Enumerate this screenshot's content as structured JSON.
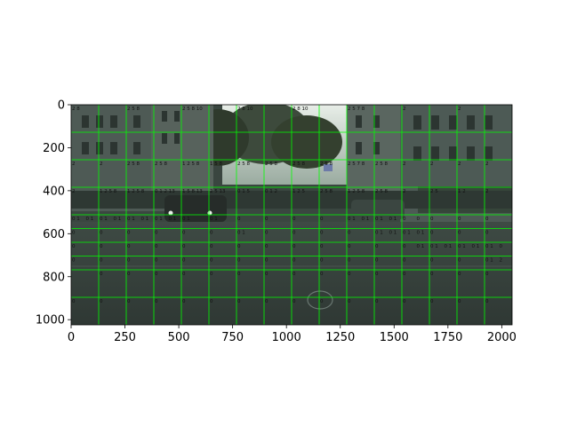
{
  "figure": {
    "image_description_kind": "street-scene",
    "accent_color": "#00ff00",
    "x_ticks": [
      "0",
      "250",
      "500",
      "750",
      "1000",
      "1250",
      "1500",
      "1750",
      "2000"
    ],
    "y_ticks": [
      "0",
      "200",
      "400",
      "600",
      "800",
      "1000"
    ],
    "x_tick_values": [
      0,
      250,
      500,
      750,
      1000,
      1250,
      1500,
      1750,
      2000
    ],
    "y_tick_values": [
      0,
      200,
      400,
      600,
      800,
      1000
    ],
    "x_range": [
      0,
      2048
    ],
    "y_range": [
      0,
      1024
    ],
    "grid_x_values": [
      128,
      256,
      384,
      512,
      640,
      768,
      896,
      1024,
      1152,
      1280,
      1408,
      1536,
      1664,
      1792,
      1920
    ],
    "grid_y_values": [
      128,
      256,
      384,
      512,
      576,
      640,
      704,
      768,
      896
    ],
    "cell_rows": [
      {
        "y": 0,
        "labels": [
          {
            "x": 0,
            "text": "2 8"
          },
          {
            "x": 256,
            "text": "2 5 8"
          },
          {
            "x": 512,
            "text": "2 5 8 10"
          },
          {
            "x": 768,
            "text": "2 8 10"
          },
          {
            "x": 1024,
            "text": "2 8 10"
          },
          {
            "x": 1280,
            "text": "2 5 7 8"
          },
          {
            "x": 1536,
            "text": "2"
          },
          {
            "x": 1792,
            "text": "2"
          }
        ]
      },
      {
        "y": 256,
        "labels": [
          {
            "x": 0,
            "text": "2"
          },
          {
            "x": 128,
            "text": "2"
          },
          {
            "x": 256,
            "text": "2 5 8"
          },
          {
            "x": 384,
            "text": "2 5 8"
          },
          {
            "x": 512,
            "text": "1 2 5 8"
          },
          {
            "x": 640,
            "text": "1 5 8"
          },
          {
            "x": 768,
            "text": "2 5 8"
          },
          {
            "x": 896,
            "text": "2 5 8"
          },
          {
            "x": 1024,
            "text": "2 5 8"
          },
          {
            "x": 1152,
            "text": "2 5 8"
          },
          {
            "x": 1280,
            "text": "2 5 7 8"
          },
          {
            "x": 1408,
            "text": "2 5 8"
          },
          {
            "x": 1536,
            "text": "2"
          },
          {
            "x": 1664,
            "text": "2"
          },
          {
            "x": 1792,
            "text": "2"
          },
          {
            "x": 1920,
            "text": "2"
          }
        ]
      },
      {
        "y": 384,
        "labels": [
          {
            "x": 0,
            "text": "2"
          },
          {
            "x": 128,
            "text": "1 2 5 8"
          },
          {
            "x": 256,
            "text": "1 2 5 8"
          },
          {
            "x": 384,
            "text": "0 1 2 13"
          },
          {
            "x": 512,
            "text": "1 5 8 13"
          },
          {
            "x": 640,
            "text": "2 5 13"
          },
          {
            "x": 768,
            "text": "0 1 5"
          },
          {
            "x": 896,
            "text": "0 1 2"
          },
          {
            "x": 1024,
            "text": "1 2 5"
          },
          {
            "x": 1152,
            "text": "2 5 8"
          },
          {
            "x": 1280,
            "text": "1 2 5 8"
          },
          {
            "x": 1408,
            "text": "2 5 8"
          },
          {
            "x": 1536,
            "text": "2"
          },
          {
            "x": 1664,
            "text": "2 5"
          },
          {
            "x": 1792,
            "text": "1 2"
          },
          {
            "x": 1920,
            "text": "2"
          }
        ]
      },
      {
        "y": 512,
        "labels": [
          {
            "x": 0,
            "text": "0 1"
          },
          {
            "x": 64,
            "text": "0 1"
          },
          {
            "x": 128,
            "text": "0 1"
          },
          {
            "x": 192,
            "text": "0 1"
          },
          {
            "x": 256,
            "text": "0 1"
          },
          {
            "x": 320,
            "text": "0 1"
          },
          {
            "x": 384,
            "text": "0 1"
          },
          {
            "x": 448,
            "text": "0 1"
          },
          {
            "x": 512,
            "text": "0 1"
          },
          {
            "x": 640,
            "text": "0 1"
          },
          {
            "x": 768,
            "text": "0"
          },
          {
            "x": 896,
            "text": "0"
          },
          {
            "x": 1024,
            "text": "0"
          },
          {
            "x": 1152,
            "text": "0"
          },
          {
            "x": 1280,
            "text": "0 1"
          },
          {
            "x": 1344,
            "text": "0 1"
          },
          {
            "x": 1408,
            "text": "0 1"
          },
          {
            "x": 1472,
            "text": "0 1"
          },
          {
            "x": 1536,
            "text": "0"
          },
          {
            "x": 1600,
            "text": "0"
          },
          {
            "x": 1664,
            "text": "0"
          },
          {
            "x": 1792,
            "text": "0"
          },
          {
            "x": 1920,
            "text": "0"
          }
        ]
      },
      {
        "y": 576,
        "labels": [
          {
            "x": 0,
            "text": "0"
          },
          {
            "x": 128,
            "text": "0"
          },
          {
            "x": 256,
            "text": "0"
          },
          {
            "x": 384,
            "text": "0"
          },
          {
            "x": 512,
            "text": "0"
          },
          {
            "x": 640,
            "text": "0"
          },
          {
            "x": 768,
            "text": "0 1"
          },
          {
            "x": 896,
            "text": "0"
          },
          {
            "x": 1024,
            "text": "0"
          },
          {
            "x": 1152,
            "text": "0"
          },
          {
            "x": 1280,
            "text": "0"
          },
          {
            "x": 1408,
            "text": "0 1"
          },
          {
            "x": 1472,
            "text": "0 1"
          },
          {
            "x": 1536,
            "text": "0 1"
          },
          {
            "x": 1600,
            "text": "0 1"
          },
          {
            "x": 1664,
            "text": "0"
          },
          {
            "x": 1792,
            "text": "0"
          },
          {
            "x": 1920,
            "text": "0"
          }
        ]
      },
      {
        "y": 640,
        "labels": [
          {
            "x": 0,
            "text": "0"
          },
          {
            "x": 128,
            "text": "0"
          },
          {
            "x": 256,
            "text": "0"
          },
          {
            "x": 384,
            "text": "0"
          },
          {
            "x": 512,
            "text": "0"
          },
          {
            "x": 640,
            "text": "0"
          },
          {
            "x": 768,
            "text": "0"
          },
          {
            "x": 896,
            "text": "0"
          },
          {
            "x": 1024,
            "text": "0"
          },
          {
            "x": 1152,
            "text": "0"
          },
          {
            "x": 1280,
            "text": "0"
          },
          {
            "x": 1408,
            "text": "0"
          },
          {
            "x": 1536,
            "text": "0"
          },
          {
            "x": 1600,
            "text": "0 1"
          },
          {
            "x": 1664,
            "text": "0 1"
          },
          {
            "x": 1728,
            "text": "0 1"
          },
          {
            "x": 1792,
            "text": "0 1"
          },
          {
            "x": 1856,
            "text": "0 1"
          },
          {
            "x": 1920,
            "text": "0 1"
          },
          {
            "x": 1984,
            "text": "0"
          }
        ]
      },
      {
        "y": 704,
        "labels": [
          {
            "x": 0,
            "text": "0"
          },
          {
            "x": 128,
            "text": "0"
          },
          {
            "x": 256,
            "text": "0"
          },
          {
            "x": 384,
            "text": "0"
          },
          {
            "x": 512,
            "text": "0"
          },
          {
            "x": 640,
            "text": "0"
          },
          {
            "x": 768,
            "text": "0"
          },
          {
            "x": 896,
            "text": "0"
          },
          {
            "x": 1024,
            "text": "0"
          },
          {
            "x": 1152,
            "text": "0"
          },
          {
            "x": 1280,
            "text": "0"
          },
          {
            "x": 1408,
            "text": "0"
          },
          {
            "x": 1536,
            "text": "0"
          },
          {
            "x": 1664,
            "text": "0"
          },
          {
            "x": 1792,
            "text": "0"
          },
          {
            "x": 1920,
            "text": "0 1"
          },
          {
            "x": 1984,
            "text": "2"
          }
        ]
      },
      {
        "y": 768,
        "labels": [
          {
            "x": 128,
            "text": "0"
          },
          {
            "x": 256,
            "text": "0"
          },
          {
            "x": 384,
            "text": "0"
          },
          {
            "x": 512,
            "text": "0"
          },
          {
            "x": 640,
            "text": "0"
          },
          {
            "x": 768,
            "text": "0"
          },
          {
            "x": 896,
            "text": "0"
          },
          {
            "x": 1024,
            "text": "0"
          },
          {
            "x": 1152,
            "text": "0"
          },
          {
            "x": 1280,
            "text": "0"
          },
          {
            "x": 1408,
            "text": "0"
          },
          {
            "x": 1536,
            "text": "0"
          },
          {
            "x": 1664,
            "text": "0"
          },
          {
            "x": 1792,
            "text": "0"
          },
          {
            "x": 1920,
            "text": "0"
          }
        ]
      },
      {
        "y": 896,
        "labels": [
          {
            "x": 0,
            "text": "0"
          },
          {
            "x": 128,
            "text": "0"
          },
          {
            "x": 256,
            "text": "0"
          },
          {
            "x": 384,
            "text": "0"
          },
          {
            "x": 512,
            "text": "0"
          },
          {
            "x": 640,
            "text": "0"
          },
          {
            "x": 768,
            "text": "0"
          },
          {
            "x": 896,
            "text": "0"
          },
          {
            "x": 1024,
            "text": "0"
          },
          {
            "x": 1152,
            "text": "0"
          },
          {
            "x": 1280,
            "text": "0"
          },
          {
            "x": 1408,
            "text": "0"
          },
          {
            "x": 1536,
            "text": "0"
          },
          {
            "x": 1664,
            "text": "0"
          },
          {
            "x": 1792,
            "text": "0"
          },
          {
            "x": 1920,
            "text": "0"
          }
        ]
      }
    ]
  }
}
